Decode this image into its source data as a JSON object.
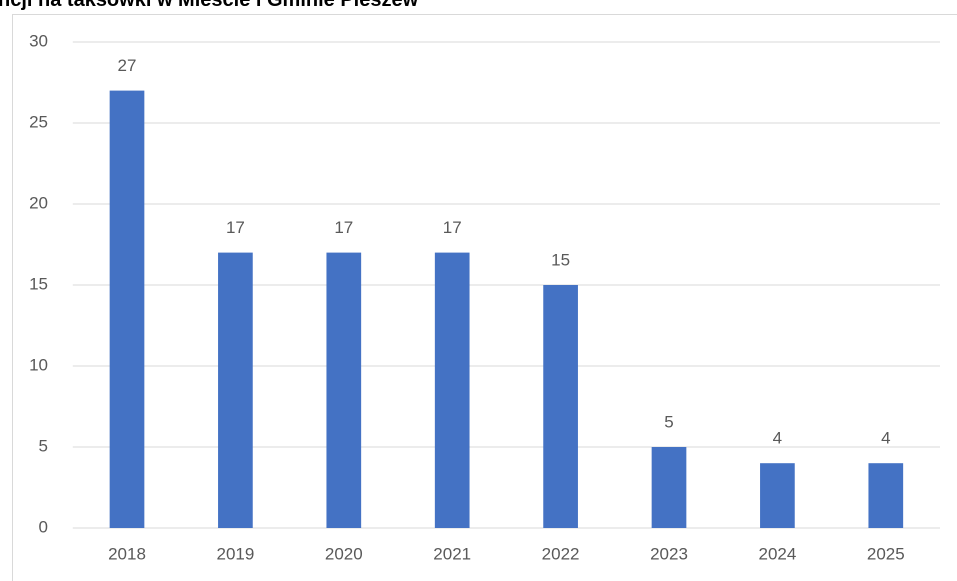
{
  "chart_data": {
    "type": "bar",
    "title": "ncji na taksówki w Mieście i Gminie Pleszew",
    "categories": [
      "2018",
      "2019",
      "2020",
      "2021",
      "2022",
      "2023",
      "2024",
      "2025"
    ],
    "values": [
      27,
      17,
      17,
      17,
      15,
      5,
      4,
      4
    ],
    "color": "#4472c4",
    "ylim": [
      0,
      30
    ],
    "yticks": [
      0,
      5,
      10,
      15,
      20,
      25,
      30
    ],
    "grid": true,
    "data_labels": true
  }
}
